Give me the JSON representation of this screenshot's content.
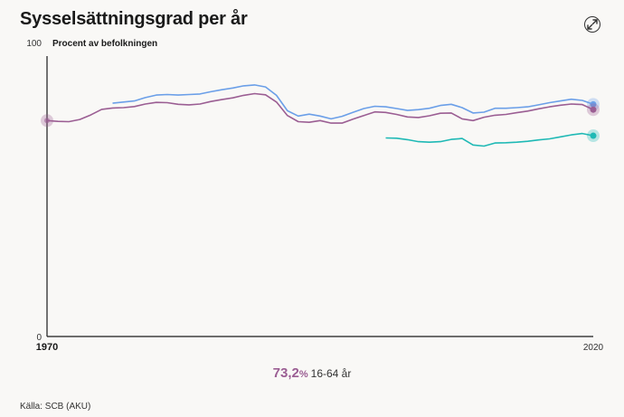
{
  "title": "Sysselsättningsgrad per år",
  "expand_icon": "expand-arrows-icon",
  "caption": {
    "value": "73,2",
    "unit": "%",
    "label": "16-64 år"
  },
  "source": "Källa: SCB (AKU)",
  "chart_data": {
    "type": "line",
    "ylabel": "Procent av befolkningen",
    "xlim": [
      1970,
      2020
    ],
    "ylim": [
      0,
      100
    ],
    "x_ticks": [
      "1970",
      "2020"
    ],
    "y_ticks": [
      "100",
      "0"
    ],
    "grid": false,
    "series": [
      {
        "color": "#6b9fe8",
        "x": [
          1976,
          1977,
          1978,
          1979,
          1980,
          1981,
          1982,
          1983,
          1984,
          1985,
          1986,
          1987,
          1988,
          1989,
          1990,
          1991,
          1992,
          1993,
          1994,
          1995,
          1996,
          1997,
          1998,
          1999,
          2000,
          2001,
          2002,
          2003,
          2004,
          2005,
          2006,
          2007,
          2008,
          2009,
          2010,
          2011,
          2012,
          2013,
          2014,
          2015,
          2016,
          2017,
          2018,
          2019,
          2020
        ],
        "y": [
          83.2,
          83.6,
          84.0,
          85.2,
          86.1,
          86.3,
          86.1,
          86.3,
          86.5,
          87.3,
          88.0,
          88.6,
          89.4,
          89.7,
          89.0,
          86.0,
          80.5,
          78.6,
          79.3,
          78.6,
          77.6,
          78.5,
          79.9,
          81.3,
          82.1,
          81.9,
          81.3,
          80.6,
          80.9,
          81.4,
          82.4,
          82.8,
          81.6,
          79.7,
          80.0,
          81.4,
          81.4,
          81.6,
          81.9,
          82.6,
          83.4,
          84.0,
          84.6,
          84.2,
          82.8
        ]
      },
      {
        "color": "#9b5e93",
        "x": [
          1970,
          1971,
          1972,
          1973,
          1974,
          1975,
          1976,
          1977,
          1978,
          1979,
          1980,
          1981,
          1982,
          1983,
          1984,
          1985,
          1986,
          1987,
          1988,
          1989,
          1990,
          1991,
          1992,
          1993,
          1994,
          1995,
          1996,
          1997,
          1998,
          1999,
          2000,
          2001,
          2002,
          2003,
          2004,
          2005,
          2006,
          2007,
          2008,
          2009,
          2010,
          2011,
          2012,
          2013,
          2014,
          2015,
          2016,
          2017,
          2018,
          2019,
          2020
        ],
        "y": [
          77.0,
          76.7,
          76.6,
          77.4,
          79.0,
          81.0,
          81.5,
          81.6,
          82.0,
          82.9,
          83.5,
          83.4,
          82.8,
          82.6,
          82.9,
          83.8,
          84.5,
          85.1,
          86.0,
          86.6,
          86.2,
          83.6,
          78.8,
          76.6,
          76.4,
          77.0,
          76.1,
          76.1,
          77.5,
          78.8,
          80.1,
          79.9,
          79.2,
          78.3,
          78.1,
          78.7,
          79.6,
          79.7,
          77.6,
          77.0,
          78.2,
          78.9,
          79.2,
          79.8,
          80.4,
          81.2,
          81.9,
          82.5,
          82.9,
          82.7,
          80.9
        ]
      },
      {
        "color": "#1fb9b5",
        "x": [
          2001,
          2002,
          2003,
          2004,
          2005,
          2006,
          2007,
          2008,
          2009,
          2010,
          2011,
          2012,
          2013,
          2014,
          2015,
          2016,
          2017,
          2018,
          2019,
          2020
        ],
        "y": [
          70.8,
          70.7,
          70.2,
          69.5,
          69.3,
          69.5,
          70.3,
          70.6,
          68.3,
          67.9,
          69.0,
          69.1,
          69.3,
          69.6,
          70.1,
          70.5,
          71.2,
          71.9,
          72.4,
          71.6
        ]
      }
    ]
  }
}
